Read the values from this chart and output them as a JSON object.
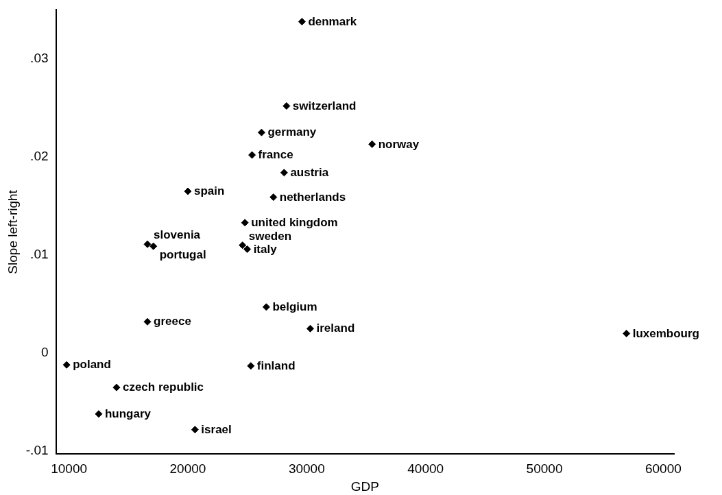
{
  "chart_data": {
    "type": "scatter",
    "xlabel": "GDP",
    "ylabel": "Slope left-right",
    "xlim": [
      8900,
      60900
    ],
    "xticks": [
      10000,
      20000,
      30000,
      40000,
      50000,
      60000
    ],
    "ylim": [
      -0.0103,
      0.035
    ],
    "yticks": [
      {
        "value": -0.01,
        "label": "-.01"
      },
      {
        "value": 0,
        "label": "0"
      },
      {
        "value": 0.01,
        "label": ".01"
      },
      {
        "value": 0.02,
        "label": ".02"
      },
      {
        "value": 0.03,
        "label": ".03"
      }
    ],
    "grid": false,
    "legend": false,
    "marker": "diamond",
    "series": [
      {
        "color": "#000000",
        "x": [
          29600,
          28300,
          26200,
          35500,
          25400,
          28100,
          20000,
          27200,
          24800,
          16600,
          17100,
          24600,
          25000,
          26600,
          16600,
          30300,
          56900,
          9800,
          25300,
          14000,
          12500,
          20600
        ],
        "values": [
          0.0338,
          0.0252,
          0.0225,
          0.0213,
          0.0202,
          0.0184,
          0.0165,
          0.0159,
          0.0133,
          0.0111,
          0.0109,
          0.011,
          0.0106,
          0.0047,
          0.0032,
          0.0025,
          0.002,
          -0.0012,
          -0.0013,
          -0.0035,
          -0.0062,
          -0.0078
        ]
      }
    ],
    "annotations": [
      {
        "text": "denmark",
        "x": 29600,
        "y": 0.0338
      },
      {
        "text": "switzerland",
        "x": 28300,
        "y": 0.0252
      },
      {
        "text": "germany",
        "x": 26200,
        "y": 0.0225
      },
      {
        "text": "norway",
        "x": 35500,
        "y": 0.0213
      },
      {
        "text": "france",
        "x": 25400,
        "y": 0.0202
      },
      {
        "text": "austria",
        "x": 28100,
        "y": 0.0184
      },
      {
        "text": "spain",
        "x": 20000,
        "y": 0.0165
      },
      {
        "text": "netherlands",
        "x": 27200,
        "y": 0.0159
      },
      {
        "text": "united kingdom",
        "x": 24800,
        "y": 0.0133
      },
      {
        "text": "slovenia",
        "x": 16600,
        "y": 0.0111
      },
      {
        "text": "portugal",
        "x": 17100,
        "y": 0.0109
      },
      {
        "text": "sweden",
        "x": 24600,
        "y": 0.011
      },
      {
        "text": "italy",
        "x": 25000,
        "y": 0.0106
      },
      {
        "text": "belgium",
        "x": 26600,
        "y": 0.0047
      },
      {
        "text": "greece",
        "x": 16600,
        "y": 0.0032
      },
      {
        "text": "ireland",
        "x": 30300,
        "y": 0.0025
      },
      {
        "text": "luxembourg",
        "x": 56900,
        "y": 0.002
      },
      {
        "text": "poland",
        "x": 9800,
        "y": -0.0012
      },
      {
        "text": "finland",
        "x": 25300,
        "y": -0.0013
      },
      {
        "text": "czech republic",
        "x": 14000,
        "y": -0.0035
      },
      {
        "text": "hungary",
        "x": 12500,
        "y": -0.0062
      },
      {
        "text": "israel",
        "x": 20600,
        "y": -0.0078
      }
    ]
  }
}
